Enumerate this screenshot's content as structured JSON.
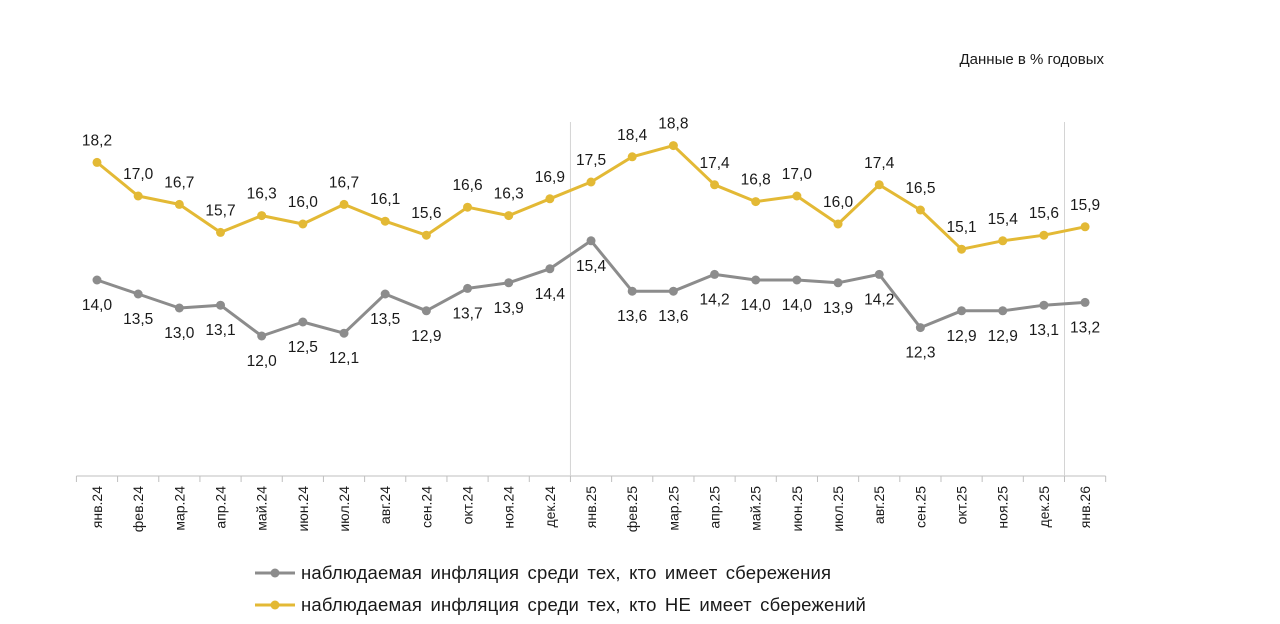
{
  "chart_data": {
    "type": "line",
    "units_note": "Данные в % годовых",
    "categories": [
      "янв.24",
      "фев.24",
      "мар.24",
      "апр.24",
      "май.24",
      "июн.24",
      "июл.24",
      "авг.24",
      "сен.24",
      "окт.24",
      "ноя.24",
      "дек.24",
      "янв.25",
      "фев.25",
      "мар.25",
      "апр.25",
      "май.25",
      "июн.25",
      "июл.25",
      "авг.25",
      "сен.25",
      "окт.25",
      "ноя.25",
      "дек.25",
      "янв.26"
    ],
    "series": [
      {
        "name": "наблюдаемая  инфляция  среди тех, кто имеет сбережения",
        "color": "#8C8C8C",
        "label_position": "below",
        "values": [
          14.0,
          13.5,
          13.0,
          13.1,
          12.0,
          12.5,
          12.1,
          13.5,
          12.9,
          13.7,
          13.9,
          14.4,
          15.4,
          13.6,
          13.6,
          14.2,
          14.0,
          14.0,
          13.9,
          14.2,
          12.3,
          12.9,
          12.9,
          13.1,
          13.2
        ]
      },
      {
        "name": "наблюдаемая  инфляция  среди тех, кто НЕ  имеет  сбережений",
        "color": "#E3B935",
        "label_position": "above",
        "values": [
          18.2,
          17.0,
          16.7,
          15.7,
          16.3,
          16.0,
          16.7,
          16.1,
          15.6,
          16.6,
          16.3,
          16.9,
          17.5,
          18.4,
          18.8,
          17.4,
          16.8,
          17.0,
          16.0,
          17.4,
          16.5,
          15.1,
          15.4,
          15.6,
          15.9
        ]
      }
    ],
    "ylim": [
      7,
      19.5
    ],
    "y_axis_visible": false,
    "grid": false,
    "year_separators_before": [
      "янв.25",
      "янв.26"
    ],
    "legend_position": "bottom",
    "decimal_separator": ","
  }
}
